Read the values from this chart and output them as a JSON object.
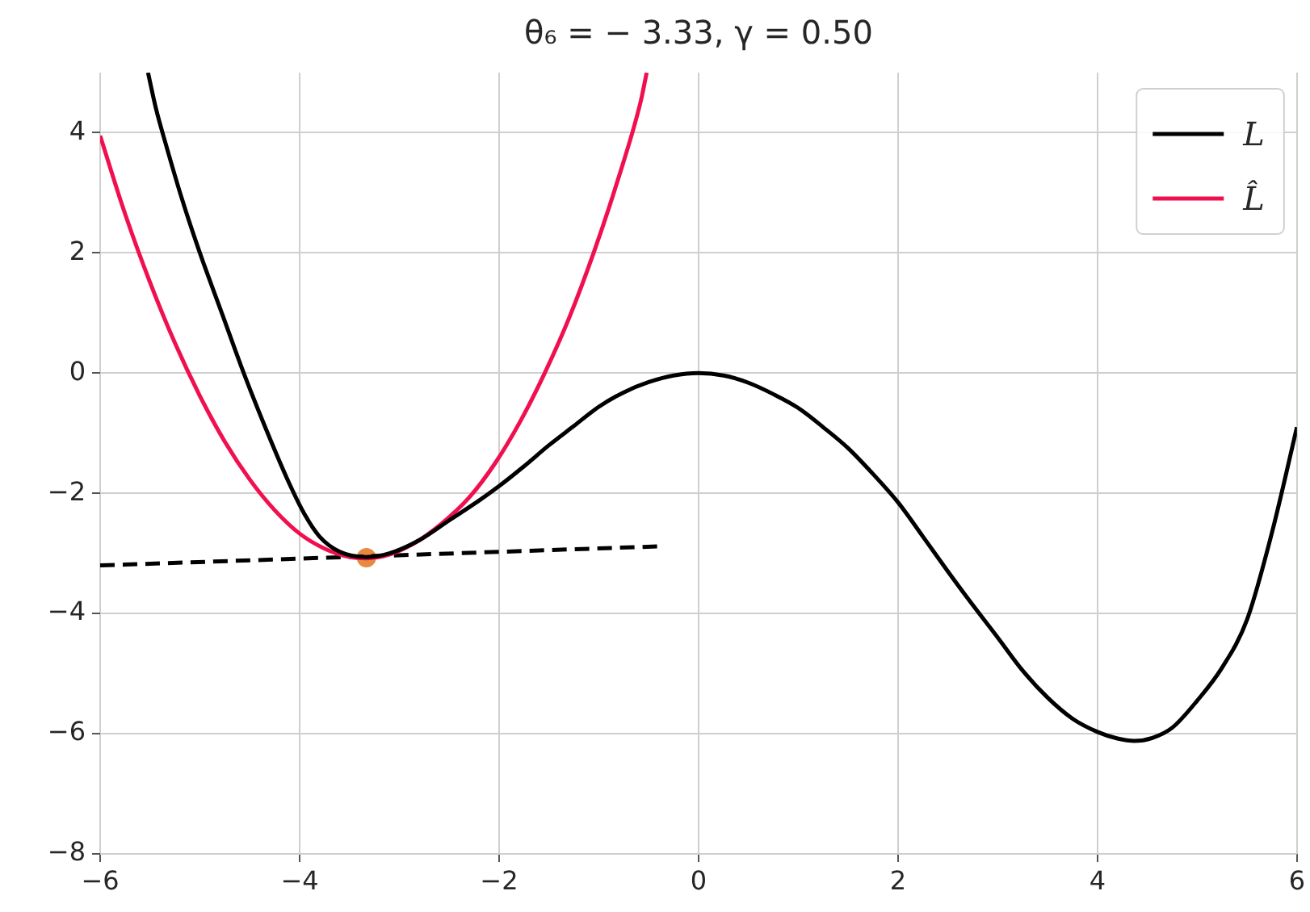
{
  "chart_data": {
    "type": "line",
    "title": "θ₆ = − 3.33, γ = 0.50",
    "xlim": [
      -6,
      6
    ],
    "ylim": [
      -8,
      5
    ],
    "xticks": [
      -6,
      -4,
      -2,
      0,
      2,
      4,
      6
    ],
    "yticks": [
      -8,
      -6,
      -4,
      -2,
      0,
      2,
      4
    ],
    "grid": true,
    "legend": "top right",
    "series": [
      {
        "name": "L",
        "color": "#000000",
        "x": [
          -5.52,
          -5.44,
          -5.34,
          -5.18,
          -5.0,
          -4.78,
          -4.56,
          -4.32,
          -4.1,
          -3.95,
          -3.8,
          -3.6,
          -3.33,
          -3.1,
          -2.8,
          -2.5,
          -2.2,
          -2.0,
          -1.75,
          -1.5,
          -1.25,
          -1.0,
          -0.75,
          -0.5,
          -0.25,
          0,
          0.25,
          0.5,
          0.75,
          1.0,
          1.25,
          1.5,
          1.75,
          2.0,
          2.25,
          2.5,
          2.7,
          3.0,
          3.25,
          3.5,
          3.75,
          4.0,
          4.2,
          4.37,
          4.55,
          4.75,
          5.0,
          5.25,
          5.5,
          5.75,
          6.0
        ],
        "values": [
          5.0,
          4.4,
          3.8,
          2.9,
          2.0,
          1.0,
          0.0,
          -1.0,
          -1.85,
          -2.35,
          -2.72,
          -2.97,
          -3.06,
          -3.0,
          -2.78,
          -2.45,
          -2.12,
          -1.88,
          -1.55,
          -1.2,
          -0.88,
          -0.56,
          -0.32,
          -0.15,
          -0.04,
          0,
          -0.04,
          -0.16,
          -0.35,
          -0.58,
          -0.9,
          -1.25,
          -1.68,
          -2.15,
          -2.72,
          -3.3,
          -3.75,
          -4.4,
          -4.95,
          -5.4,
          -5.75,
          -5.97,
          -6.08,
          -6.12,
          -6.07,
          -5.9,
          -5.45,
          -4.9,
          -4.1,
          -2.65,
          -0.9
        ]
      },
      {
        "name": "L̂",
        "color": "#f0104f",
        "x": [
          -6,
          -5.75,
          -5.5,
          -5.25,
          -5.0,
          -4.75,
          -4.5,
          -4.25,
          -4.0,
          -3.75,
          -3.5,
          -3.33,
          -3.1,
          -2.84,
          -2.58,
          -2.3,
          -2.04,
          -1.79,
          -1.54,
          -1.29,
          -1.05,
          -0.81,
          -0.58,
          -0.52
        ],
        "values": [
          3.95,
          2.65,
          1.51,
          0.5,
          -0.38,
          -1.14,
          -1.77,
          -2.28,
          -2.67,
          -2.92,
          -3.06,
          -3.08,
          -3.02,
          -2.82,
          -2.51,
          -2.07,
          -1.5,
          -0.81,
          0.01,
          0.95,
          2.01,
          3.21,
          4.52,
          5.0
        ]
      },
      {
        "color": "#000000",
        "line_style": "dashed",
        "x": [
          -6,
          -0.35
        ],
        "values": [
          -3.2,
          -2.88
        ]
      },
      {
        "color": "#e8893f",
        "type": "scatter",
        "marker": "circle",
        "x": [
          -3.33
        ],
        "values": [
          -3.07
        ]
      }
    ]
  }
}
